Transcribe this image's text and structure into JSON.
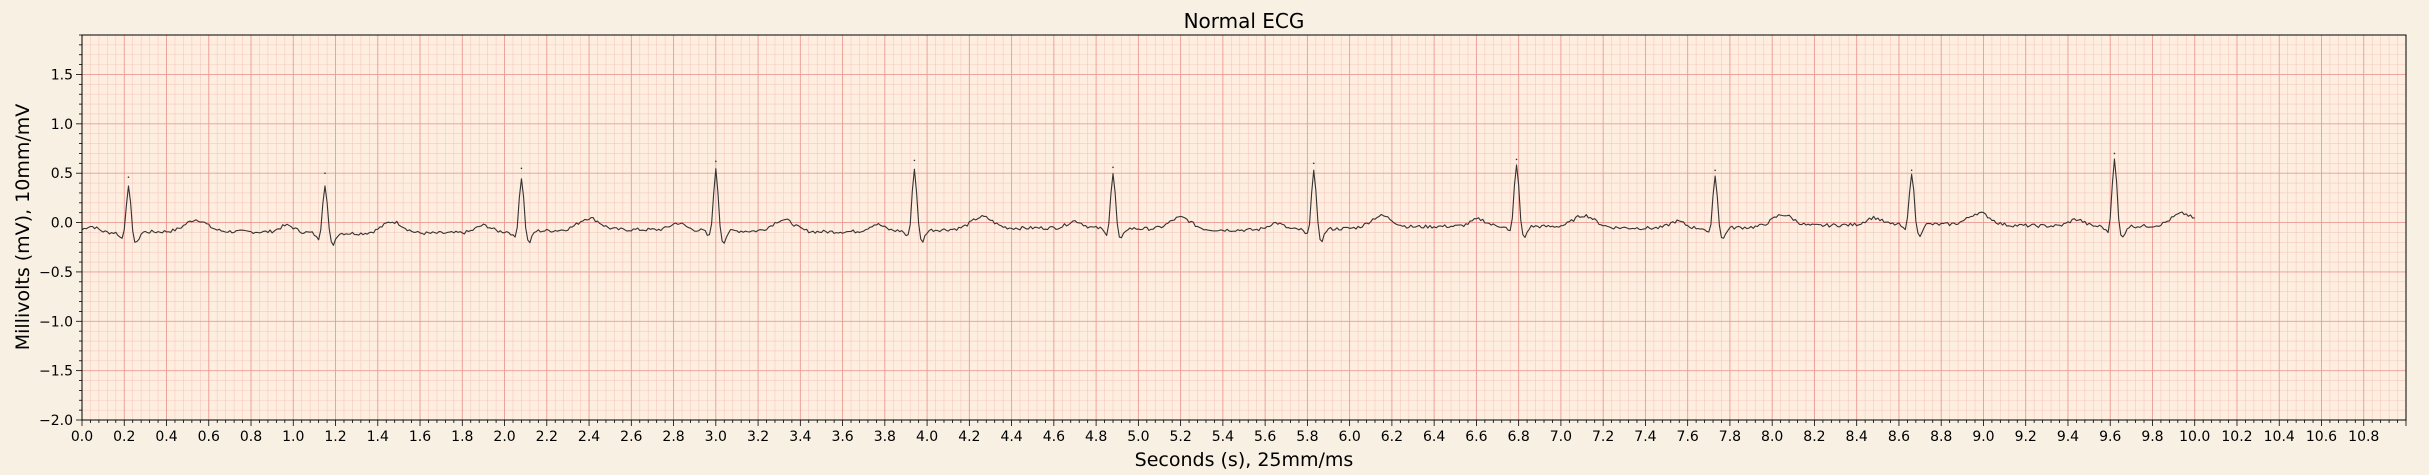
{
  "chart_data": {
    "type": "line",
    "title": "Normal ECG",
    "xlabel": "Seconds (s), 25mm/ms",
    "ylabel": "Millivolts (mV), 10mm/mV",
    "xlim": [
      0,
      11
    ],
    "ylim": [
      -2.0,
      1.9
    ],
    "x_ticks": [
      "0.0",
      "0.2",
      "0.4",
      "0.6",
      "0.8",
      "1.0",
      "1.2",
      "1.4",
      "1.6",
      "1.8",
      "2.0",
      "2.2",
      "2.4",
      "2.6",
      "2.8",
      "3.0",
      "3.2",
      "3.4",
      "3.6",
      "3.8",
      "4.0",
      "4.2",
      "4.4",
      "4.6",
      "4.8",
      "5.0",
      "5.2",
      "5.4",
      "5.6",
      "5.8",
      "6.0",
      "6.2",
      "6.4",
      "6.6",
      "6.8",
      "7.0",
      "7.2",
      "7.4",
      "7.6",
      "7.8",
      "8.0",
      "8.2",
      "8.4",
      "8.6",
      "8.8",
      "9.0",
      "9.2",
      "9.4",
      "9.6",
      "9.8",
      "10.0",
      "10.2",
      "10.4",
      "10.6",
      "10.8"
    ],
    "y_ticks": [
      "1.5",
      "1.0",
      "0.5",
      "0.0",
      "−0.5",
      "−1.0",
      "−1.5",
      "−2.0"
    ],
    "y_tick_values": [
      1.5,
      1.0,
      0.5,
      0.0,
      -0.5,
      -1.0,
      -1.5,
      -2.0
    ],
    "grid": true,
    "grid_major_step_x": 0.2,
    "grid_minor_step_x": 0.04,
    "grid_major_step_y": 0.5,
    "grid_minor_step_y": 0.1,
    "colors": {
      "figure_bg": "#f8f0e3",
      "plot_bg": "#fdeee0",
      "minor_grid": "#f6c9c0",
      "major_grid": "#ec9a94",
      "trace": "#333333"
    },
    "sample_rate_hz": 100,
    "duration_s": 10.0,
    "series": [
      {
        "beats": [
          {
            "r_time": 0.22,
            "r_amp": 0.46
          },
          {
            "r_time": 1.15,
            "r_amp": 0.5
          },
          {
            "r_time": 2.08,
            "r_amp": 0.55
          },
          {
            "r_time": 3.0,
            "r_amp": 0.62
          },
          {
            "r_time": 3.94,
            "r_amp": 0.63
          },
          {
            "r_time": 4.88,
            "r_amp": 0.56
          },
          {
            "r_time": 5.83,
            "r_amp": 0.6
          },
          {
            "r_time": 6.79,
            "r_amp": 0.64
          },
          {
            "r_time": 7.73,
            "r_amp": 0.53
          },
          {
            "r_time": 8.66,
            "r_amp": 0.53
          },
          {
            "r_time": 9.62,
            "r_amp": 0.7
          }
        ]
      }
    ]
  }
}
